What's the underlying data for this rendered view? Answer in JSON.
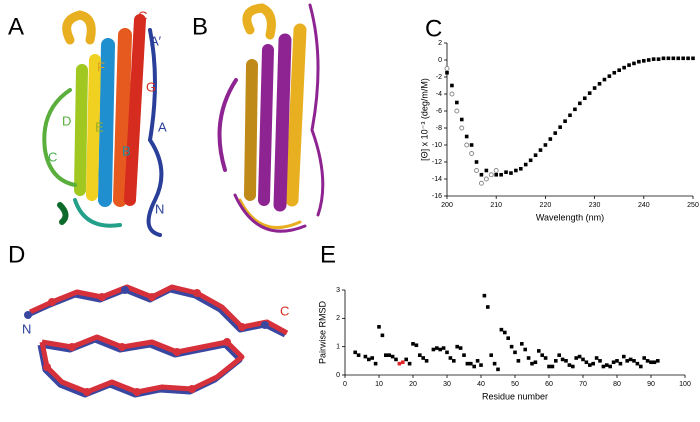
{
  "panels": {
    "labels": [
      "A",
      "B",
      "C",
      "D",
      "E"
    ],
    "a_labels": [
      {
        "text": "C",
        "color": "#d62b1f"
      },
      {
        "text": "A′",
        "color": "#2a3f9a"
      },
      {
        "text": "F",
        "color": "#e0a020"
      },
      {
        "text": "G",
        "color": "#d62b1f"
      },
      {
        "text": "D",
        "color": "#5aae3c"
      },
      {
        "text": "E",
        "color": "#a0b020"
      },
      {
        "text": "C",
        "color": "#4caf50"
      },
      {
        "text": "B",
        "color": "#1f8fa0"
      },
      {
        "text": "A",
        "color": "#2a3f9a"
      },
      {
        "text": "N",
        "color": "#2a3f9a"
      }
    ],
    "d_labels": [
      {
        "text": "N",
        "color": "#2a3f9a"
      },
      {
        "text": "C",
        "color": "#d62b1f"
      }
    ]
  },
  "chart_data": [
    {
      "type": "scatter",
      "xlabel": "Wavelength (nm)",
      "ylabel": "[Θ] x 10⁻³   (deg/m/M)",
      "xlim": [
        200,
        250
      ],
      "xticks": [
        200,
        210,
        220,
        230,
        240,
        250
      ],
      "ylim": [
        -16,
        2
      ],
      "yticks": [
        2,
        0,
        -2,
        -4,
        -6,
        -8,
        -10,
        -12,
        -14,
        -16
      ],
      "series": [
        {
          "marker": "square",
          "color": "#000000",
          "x": [
            200,
            201,
            202,
            203,
            204,
            205,
            206,
            207,
            208,
            209,
            210,
            211,
            212,
            213,
            214,
            215,
            216,
            217,
            218,
            219,
            220,
            221,
            222,
            223,
            224,
            225,
            226,
            227,
            228,
            229,
            230,
            231,
            232,
            233,
            234,
            235,
            236,
            237,
            238,
            239,
            240,
            241,
            242,
            243,
            244,
            245,
            246,
            247,
            248,
            249,
            250
          ],
          "values": [
            -1.5,
            -3,
            -5,
            -7,
            -9,
            -10,
            -12,
            -13.5,
            -13,
            -13.5,
            -13.5,
            -13.5,
            -13.2,
            -13.3,
            -13,
            -12.8,
            -12.3,
            -11.8,
            -11.2,
            -10.6,
            -10,
            -9.3,
            -8.6,
            -7.9,
            -7.2,
            -6.5,
            -5.8,
            -5.1,
            -4.5,
            -3.9,
            -3.3,
            -2.8,
            -2.3,
            -1.9,
            -1.5,
            -1.2,
            -0.9,
            -0.6,
            -0.4,
            -0.2,
            -0.1,
            0,
            0.1,
            0.1,
            0.2,
            0.2,
            0.2,
            0.2,
            0.2,
            0.2,
            0.2
          ]
        },
        {
          "marker": "circle",
          "color": "#888888",
          "x": [
            200,
            201,
            202,
            203,
            204,
            205,
            206,
            207,
            208,
            209,
            210
          ],
          "values": [
            -1,
            -4,
            -6,
            -8,
            -10,
            -11,
            -13,
            -14.5,
            -14,
            -13.5,
            -13
          ]
        }
      ]
    },
    {
      "type": "scatter",
      "xlabel": "Residue number",
      "ylabel": "Pairwise RMSD",
      "xlim": [
        0,
        100
      ],
      "xticks": [
        0,
        10,
        20,
        30,
        40,
        50,
        60,
        70,
        80,
        90,
        100
      ],
      "ylim": [
        0,
        3
      ],
      "yticks": [
        0,
        1,
        2,
        3
      ],
      "series": [
        {
          "marker": "square",
          "color": "#000000",
          "x": [
            3,
            4,
            6,
            7,
            8,
            9,
            10,
            11,
            12,
            13,
            14,
            15,
            18,
            19,
            20,
            21,
            22,
            23,
            24,
            26,
            27,
            28,
            29,
            30,
            31,
            32,
            33,
            34,
            35,
            36,
            37,
            38,
            39,
            40,
            41,
            42,
            43,
            44,
            45,
            46,
            47,
            48,
            49,
            50,
            51,
            52,
            53,
            54,
            55,
            56,
            57,
            58,
            59,
            60,
            61,
            62,
            63,
            64,
            65,
            66,
            67,
            68,
            69,
            70,
            71,
            72,
            73,
            74,
            75,
            76,
            77,
            78,
            79,
            80,
            81,
            82,
            83,
            84,
            85,
            86,
            87,
            88,
            89,
            90,
            91,
            92
          ],
          "values": [
            0.8,
            0.7,
            0.65,
            0.55,
            0.6,
            0.4,
            1.7,
            1.4,
            0.7,
            0.7,
            0.65,
            0.55,
            0.55,
            0.4,
            1.1,
            1.05,
            0.7,
            0.6,
            0.5,
            0.9,
            0.95,
            0.9,
            0.95,
            0.8,
            0.6,
            0.5,
            1.0,
            0.95,
            0.7,
            0.4,
            0.4,
            0.3,
            0.5,
            0.35,
            2.8,
            2.4,
            0.7,
            0.4,
            0.2,
            1.6,
            1.5,
            1.3,
            1.0,
            0.8,
            0.5,
            1.1,
            0.9,
            0.6,
            0.4,
            0.45,
            0.85,
            0.7,
            0.6,
            0.3,
            0.3,
            0.5,
            0.7,
            0.55,
            0.5,
            0.35,
            0.3,
            0.6,
            0.65,
            0.55,
            0.45,
            0.35,
            0.4,
            0.6,
            0.5,
            0.3,
            0.35,
            0.3,
            0.45,
            0.5,
            0.4,
            0.65,
            0.5,
            0.55,
            0.5,
            0.4,
            0.3,
            0.6,
            0.5,
            0.45,
            0.45,
            0.5
          ]
        },
        {
          "marker": "square",
          "color": "#e0262b",
          "x": [
            16,
            17
          ],
          "values": [
            0.4,
            0.45
          ]
        }
      ]
    }
  ]
}
